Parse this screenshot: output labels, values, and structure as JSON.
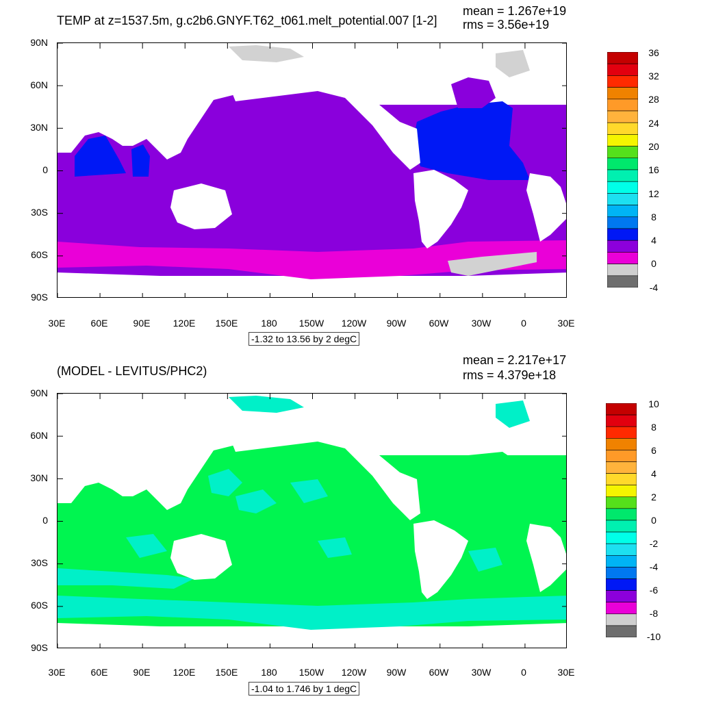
{
  "charts": [
    {
      "type": "heatmap",
      "title": "TEMP at z=1537.5m, g.c2b6.GNYF.T62_t061.melt_potential.007 [1-2]",
      "mean": "mean = 1.267e+19",
      "rms": "rms = 3.56e+19",
      "range_label": "-1.32 to 13.56 by 2 degC",
      "ylabels": [
        "90N",
        "60N",
        "30N",
        "0",
        "30S",
        "60S",
        "90S"
      ],
      "xlabels": [
        "30E",
        "60E",
        "90E",
        "120E",
        "150E",
        "180",
        "150W",
        "120W",
        "90W",
        "60W",
        "30W",
        "0",
        "30E"
      ],
      "colorbar_labels": [
        "36",
        "32",
        "28",
        "24",
        "20",
        "16",
        "12",
        "8",
        "4",
        "0",
        "-4"
      ],
      "colorbar_colors": [
        "#c40000",
        "#e2000f",
        "#ff2a00",
        "#f08200",
        "#ff9a28",
        "#ffb33c",
        "#ffd92b",
        "#f5f500",
        "#55e01b",
        "#00e86c",
        "#00f0b0",
        "#00ffe8",
        "#1de0f0",
        "#00b4f5",
        "#0078f0",
        "#0018f5",
        "#8c00dc",
        "#ea00d8",
        "#cfcfcf",
        "#6e6e6e"
      ]
    },
    {
      "type": "heatmap",
      "title": "(MODEL - LEVITUS/PHC2)",
      "mean": "mean = 2.217e+17",
      "rms": "rms = 4.379e+18",
      "range_label": "-1.04 to 1.746 by 1 degC",
      "ylabels": [
        "90N",
        "60N",
        "30N",
        "0",
        "30S",
        "60S",
        "90S"
      ],
      "xlabels": [
        "30E",
        "60E",
        "90E",
        "120E",
        "150E",
        "180",
        "150W",
        "120W",
        "90W",
        "60W",
        "30W",
        "0",
        "30E"
      ],
      "colorbar_labels": [
        "10",
        "8",
        "6",
        "4",
        "2",
        "0",
        "-2",
        "-4",
        "-6",
        "-8",
        "-10"
      ],
      "colorbar_colors": [
        "#c40000",
        "#e2000f",
        "#ff2a00",
        "#f08200",
        "#ff9a28",
        "#ffb33c",
        "#ffd92b",
        "#f5f500",
        "#55e01b",
        "#00e86c",
        "#00f0b0",
        "#00ffe8",
        "#1de0f0",
        "#00b4f5",
        "#0078f0",
        "#0018f5",
        "#8c00dc",
        "#ea00d8",
        "#cfcfcf",
        "#6e6e6e"
      ]
    }
  ],
  "colors": {
    "land": "#ffffff",
    "ice": "#d2d2d2",
    "top_ocean": "#8a00dc",
    "top_south": "#ea00d8",
    "top_atlantic": "#0018f5",
    "top_indian": "#0018f5",
    "bottom_ocean": "#00f550",
    "bottom_cyan": "#00f0c8"
  }
}
